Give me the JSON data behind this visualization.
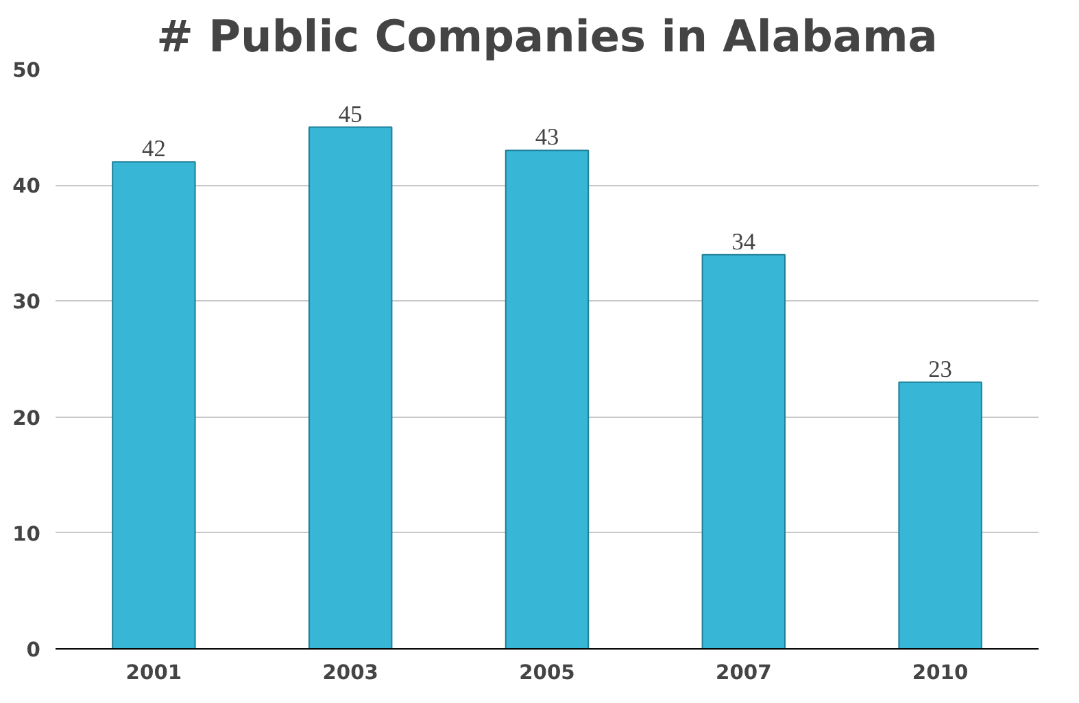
{
  "chart_data": {
    "type": "bar",
    "title": "# Public Companies in Alabama",
    "categories": [
      "2001",
      "2003",
      "2005",
      "2007",
      "2010"
    ],
    "values": [
      42,
      45,
      43,
      34,
      23
    ],
    "color": "#38b6d6",
    "ylim": [
      0,
      50
    ],
    "yticks": [
      0,
      10,
      20,
      30,
      40,
      50
    ],
    "grid": "y",
    "data_labels": true
  }
}
